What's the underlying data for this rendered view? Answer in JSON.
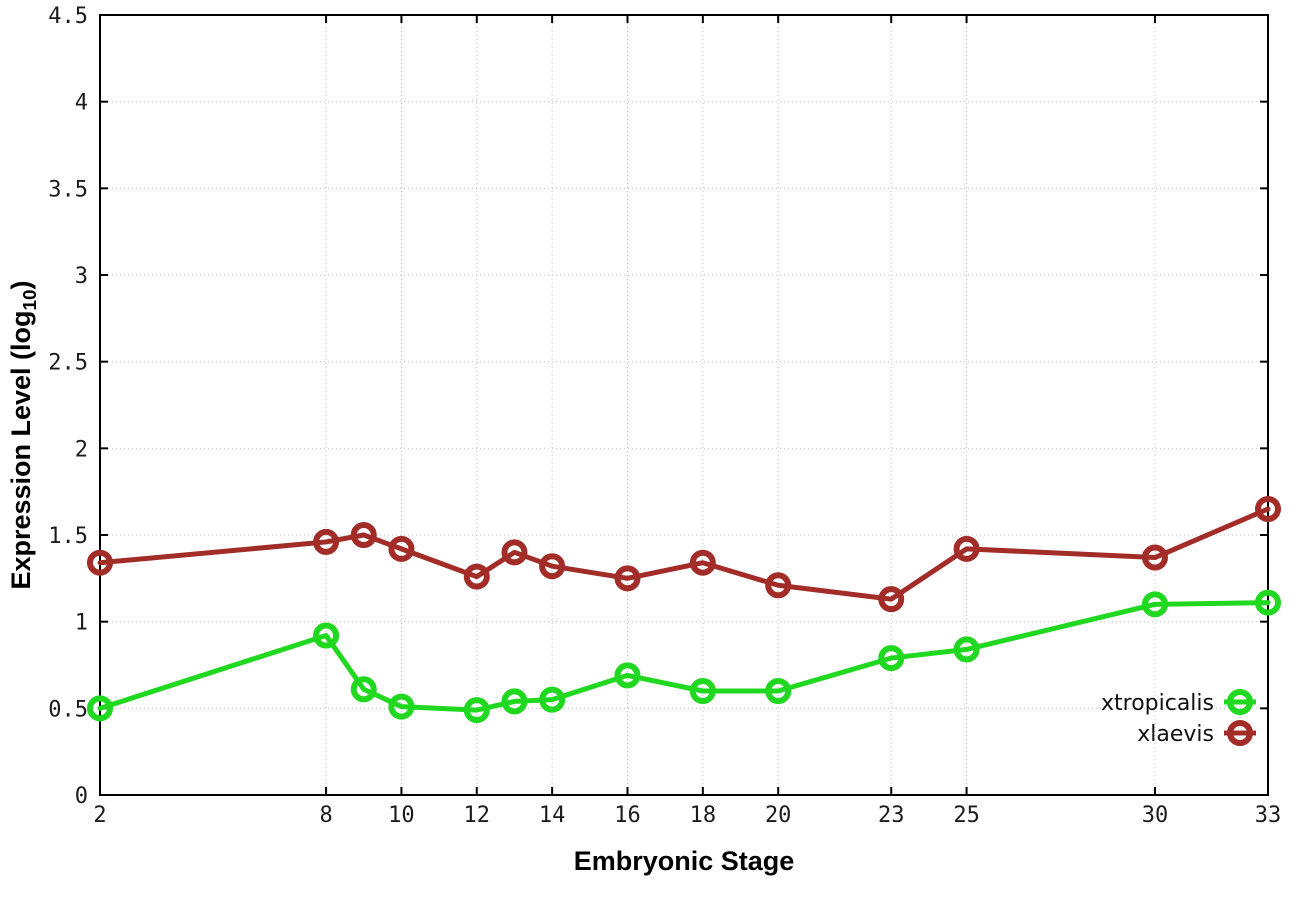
{
  "chart_data": {
    "type": "line",
    "title": "",
    "xlabel": "Embryonic Stage",
    "ylabel": "Expression Level (log10)",
    "ylabel_display": {
      "pre": "Expression Level (log",
      "sub": "10",
      "post": ")"
    },
    "xlim": [
      2,
      33
    ],
    "ylim": [
      0,
      4.5
    ],
    "grid": "dotted",
    "grid_color": "#c0c0c0",
    "axis_color": "#000000",
    "legend_position": "inside-bottom-right",
    "x": [
      2,
      8,
      9,
      10,
      12,
      13,
      14,
      16,
      18,
      20,
      23,
      25,
      30,
      33
    ],
    "xticks": [
      2,
      8,
      10,
      12,
      14,
      16,
      18,
      20,
      23,
      25,
      30,
      33
    ],
    "yticks": [
      0,
      0.5,
      1,
      1.5,
      2,
      2.5,
      3,
      3.5,
      4,
      4.5
    ],
    "series": [
      {
        "name": "xtropicalis",
        "color": "#1fd81f",
        "marker": "open-circle",
        "values": [
          0.5,
          0.92,
          0.61,
          0.51,
          0.49,
          0.54,
          0.55,
          0.69,
          0.6,
          0.6,
          0.79,
          0.84,
          1.1,
          1.11
        ]
      },
      {
        "name": "xlaevis",
        "color": "#a22c27",
        "marker": "open-circle",
        "values": [
          1.34,
          1.46,
          1.5,
          1.42,
          1.26,
          1.4,
          1.32,
          1.25,
          1.34,
          1.21,
          1.13,
          1.42,
          1.37,
          1.65
        ]
      }
    ]
  }
}
